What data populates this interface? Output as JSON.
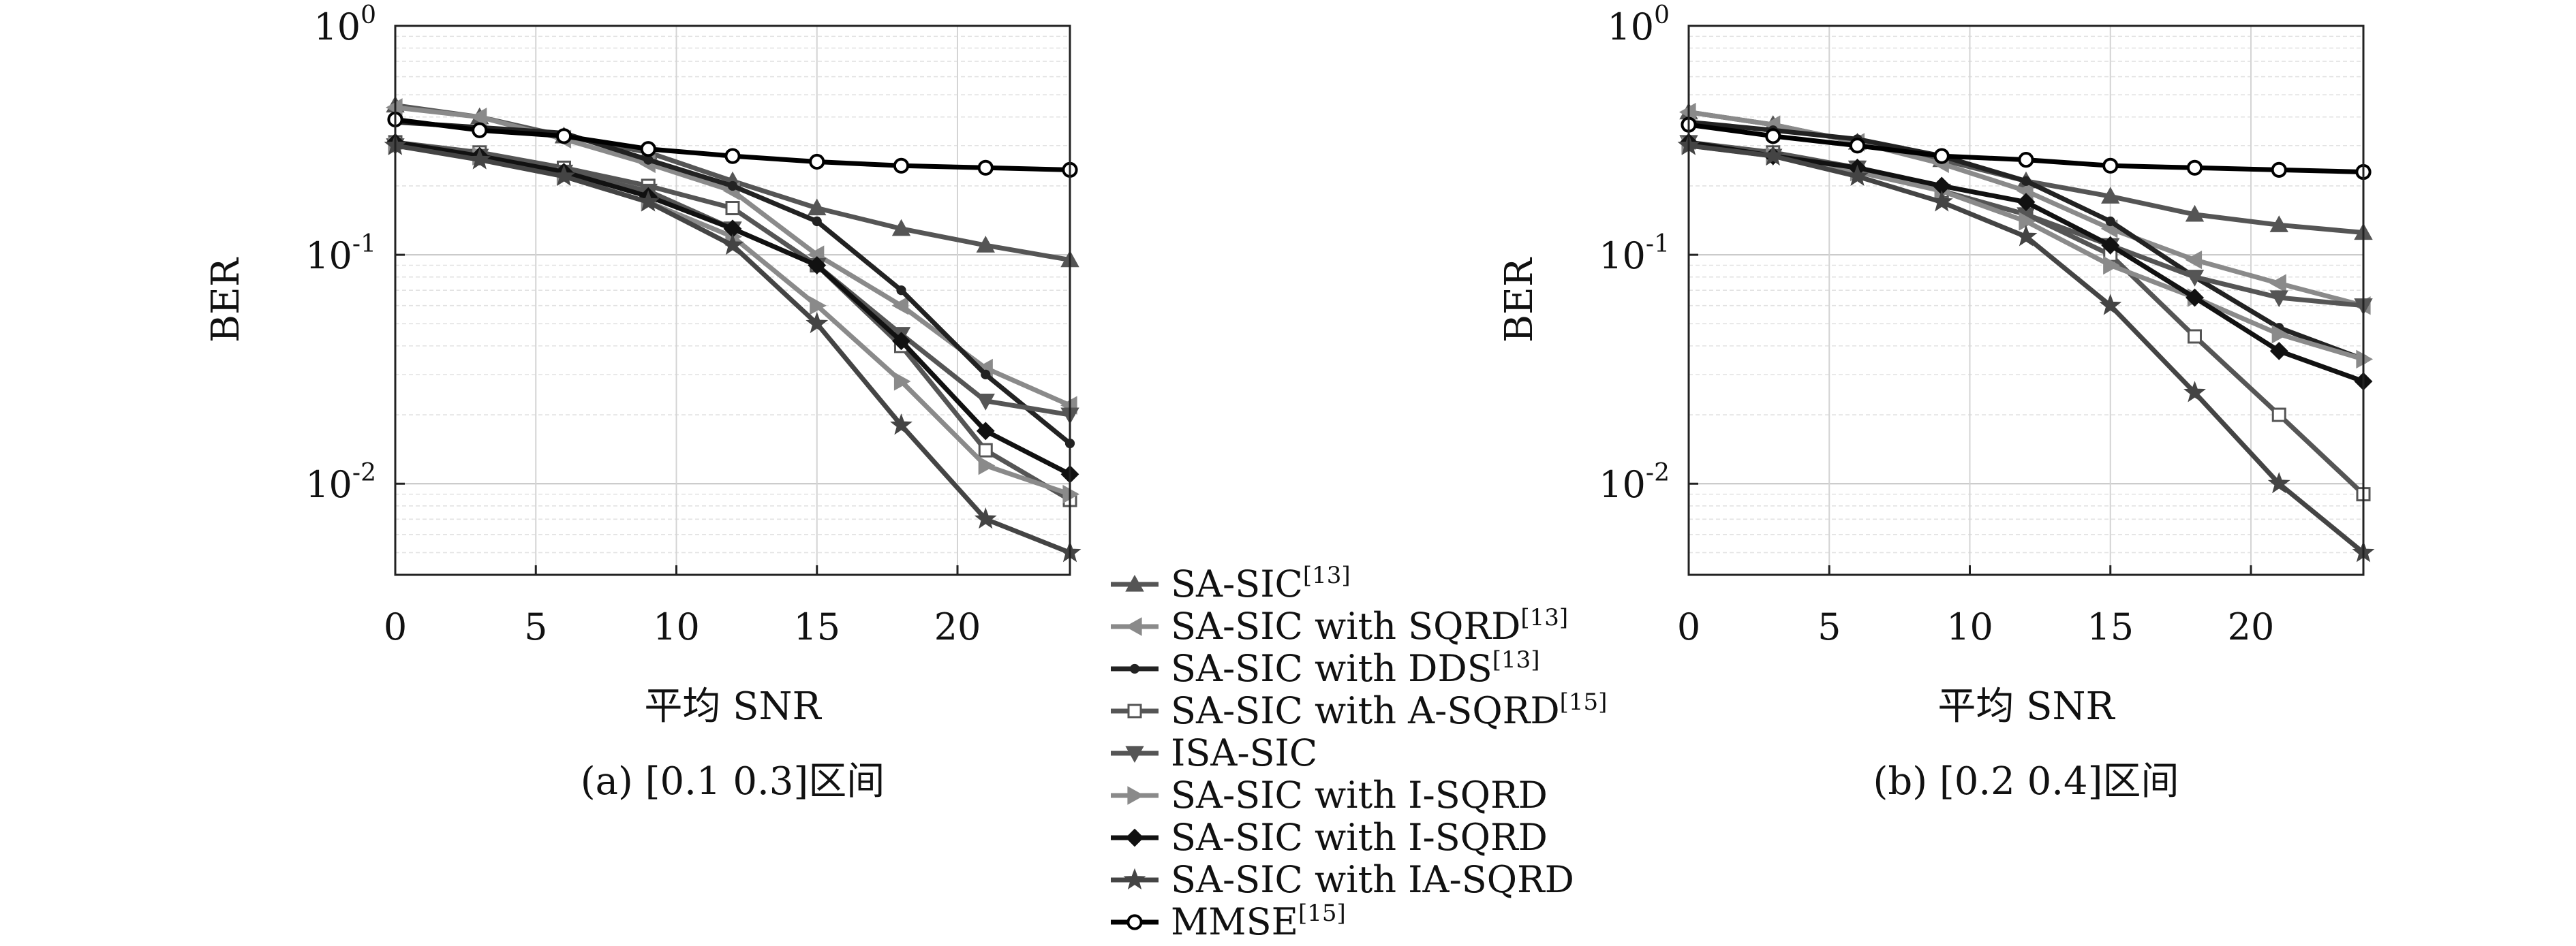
{
  "chart_data": [
    {
      "type": "line",
      "panel": "a",
      "caption": "(a) [0.1 0.3]区间",
      "xlabel": "平均 SNR",
      "ylabel": "BER",
      "x": [
        0,
        3,
        6,
        9,
        12,
        15,
        18,
        21,
        24
      ],
      "xlim": [
        0,
        24
      ],
      "ylim": [
        0.004,
        1
      ],
      "yscale": "log",
      "xticks": [
        "0",
        "5",
        "10",
        "15",
        "20"
      ],
      "xtick_values": [
        0,
        5,
        10,
        15,
        20
      ],
      "grid": true,
      "series": [
        {
          "name": "SA-SIC[13]",
          "values": [
            0.45,
            0.4,
            0.33,
            0.28,
            0.21,
            0.16,
            0.13,
            0.11,
            0.095
          ]
        },
        {
          "name": "SA-SIC with SQRD[13]",
          "values": [
            0.44,
            0.4,
            0.32,
            0.25,
            0.19,
            0.1,
            0.06,
            0.032,
            0.022
          ]
        },
        {
          "name": "SA-SIC with DDS[13]",
          "values": [
            0.38,
            0.36,
            0.34,
            0.26,
            0.2,
            0.14,
            0.07,
            0.03,
            0.015
          ]
        },
        {
          "name": "SA-SIC with A-SQRD[15]",
          "values": [
            0.31,
            0.28,
            0.24,
            0.2,
            0.16,
            0.09,
            0.04,
            0.014,
            0.0085
          ]
        },
        {
          "name": "ISA-SIC",
          "values": [
            0.3,
            0.27,
            0.23,
            0.19,
            0.13,
            0.09,
            0.045,
            0.023,
            0.02
          ]
        },
        {
          "name": "SA-SIC with I-SQRD",
          "values": [
            0.3,
            0.27,
            0.22,
            0.17,
            0.12,
            0.06,
            0.028,
            0.012,
            0.009
          ]
        },
        {
          "name": "SA-SIC with I-SQRD",
          "values": [
            0.31,
            0.27,
            0.23,
            0.18,
            0.13,
            0.09,
            0.042,
            0.017,
            0.011
          ]
        },
        {
          "name": "SA-SIC with IA-SQRD",
          "values": [
            0.3,
            0.26,
            0.22,
            0.17,
            0.11,
            0.05,
            0.018,
            0.007,
            0.005
          ]
        },
        {
          "name": "MMSE[15]",
          "values": [
            0.39,
            0.35,
            0.33,
            0.29,
            0.27,
            0.255,
            0.245,
            0.24,
            0.235
          ]
        }
      ]
    },
    {
      "type": "line",
      "panel": "b",
      "caption": "(b) [0.2 0.4]区间",
      "xlabel": "平均 SNR",
      "ylabel": "BER",
      "x": [
        0,
        3,
        6,
        9,
        12,
        15,
        18,
        21,
        24
      ],
      "xlim": [
        0,
        24
      ],
      "ylim": [
        0.004,
        1
      ],
      "yscale": "log",
      "xticks": [
        "0",
        "5",
        "10",
        "15",
        "20"
      ],
      "xtick_values": [
        0,
        5,
        10,
        15,
        20
      ],
      "grid": true,
      "series": [
        {
          "name": "SA-SIC[13]",
          "values": [
            0.42,
            0.37,
            0.31,
            0.26,
            0.21,
            0.18,
            0.15,
            0.135,
            0.125
          ]
        },
        {
          "name": "SA-SIC with SQRD[13]",
          "values": [
            0.42,
            0.37,
            0.31,
            0.25,
            0.19,
            0.13,
            0.095,
            0.075,
            0.06
          ]
        },
        {
          "name": "SA-SIC with DDS[13]",
          "values": [
            0.38,
            0.35,
            0.32,
            0.27,
            0.21,
            0.14,
            0.08,
            0.048,
            0.035
          ]
        },
        {
          "name": "SA-SIC with A-SQRD[15]",
          "values": [
            0.31,
            0.28,
            0.24,
            0.19,
            0.15,
            0.1,
            0.044,
            0.02,
            0.009
          ]
        },
        {
          "name": "ISA-SIC",
          "values": [
            0.31,
            0.27,
            0.24,
            0.19,
            0.15,
            0.11,
            0.08,
            0.065,
            0.06
          ]
        },
        {
          "name": "SA-SIC with I-SQRD",
          "values": [
            0.3,
            0.27,
            0.23,
            0.19,
            0.14,
            0.09,
            0.065,
            0.045,
            0.035
          ]
        },
        {
          "name": "SA-SIC with I-SQRD",
          "values": [
            0.31,
            0.27,
            0.24,
            0.2,
            0.17,
            0.11,
            0.065,
            0.038,
            0.028
          ]
        },
        {
          "name": "SA-SIC with IA-SQRD",
          "values": [
            0.3,
            0.27,
            0.22,
            0.17,
            0.12,
            0.06,
            0.025,
            0.01,
            0.005
          ]
        },
        {
          "name": "MMSE[15]",
          "values": [
            0.37,
            0.33,
            0.3,
            0.27,
            0.26,
            0.245,
            0.24,
            0.235,
            0.23
          ]
        }
      ]
    }
  ],
  "legend": {
    "placement": "bottom-center",
    "entries": [
      {
        "base": "SA-SIC",
        "sup": "[13]",
        "marker": "triangle-up",
        "color": "#555555"
      },
      {
        "base": "SA-SIC with SQRD",
        "sup": "[13]",
        "marker": "triangle-left",
        "color": "#8a8a8a"
      },
      {
        "base": "SA-SIC with DDS",
        "sup": "[13]",
        "marker": "dot",
        "color": "#222222"
      },
      {
        "base": "SA-SIC with A-SQRD",
        "sup": "[15]",
        "marker": "square",
        "color": "#555555"
      },
      {
        "base": "ISA-SIC",
        "sup": "",
        "marker": "triangle-down",
        "color": "#555555"
      },
      {
        "base": "SA-SIC with I-SQRD",
        "sup": "",
        "marker": "triangle-right",
        "color": "#8a8a8a"
      },
      {
        "base": "SA-SIC with I-SQRD",
        "sup": "",
        "marker": "diamond",
        "color": "#111111"
      },
      {
        "base": "SA-SIC with IA-SQRD",
        "sup": "",
        "marker": "star",
        "color": "#444444"
      },
      {
        "base": "MMSE",
        "sup": "[15]",
        "marker": "circle",
        "color": "#000000"
      }
    ]
  },
  "ytick_labels": [
    {
      "base": "10",
      "exp": "0"
    },
    {
      "base": "10",
      "exp": "-1"
    },
    {
      "base": "10",
      "exp": "-2"
    }
  ]
}
